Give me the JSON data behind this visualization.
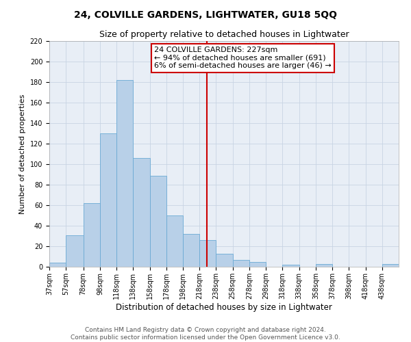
{
  "title": "24, COLVILLE GARDENS, LIGHTWATER, GU18 5QQ",
  "subtitle": "Size of property relative to detached houses in Lightwater",
  "xlabel": "Distribution of detached houses by size in Lightwater",
  "ylabel": "Number of detached properties",
  "bin_edges": [
    37,
    57,
    78,
    98,
    118,
    138,
    158,
    178,
    198,
    218,
    238,
    258,
    278,
    298,
    318,
    338,
    358,
    378,
    398,
    418,
    438,
    458
  ],
  "bar_heights": [
    4,
    31,
    62,
    130,
    182,
    106,
    89,
    50,
    32,
    26,
    13,
    7,
    5,
    0,
    2,
    0,
    3,
    0,
    0,
    0,
    3
  ],
  "bar_color": "#b8d0e8",
  "bar_edge_color": "#6aaad4",
  "grid_color": "#c8d4e4",
  "background_color": "#e8eef6",
  "vline_x": 227,
  "vline_color": "#cc0000",
  "annotation_text": "24 COLVILLE GARDENS: 227sqm\n← 94% of detached houses are smaller (691)\n6% of semi-detached houses are larger (46) →",
  "annotation_box_color": "#cc0000",
  "xlim": [
    37,
    458
  ],
  "ylim": [
    0,
    220
  ],
  "yticks": [
    0,
    20,
    40,
    60,
    80,
    100,
    120,
    140,
    160,
    180,
    200,
    220
  ],
  "xtick_labels": [
    "37sqm",
    "57sqm",
    "78sqm",
    "98sqm",
    "118sqm",
    "138sqm",
    "158sqm",
    "178sqm",
    "198sqm",
    "218sqm",
    "238sqm",
    "258sqm",
    "278sqm",
    "298sqm",
    "318sqm",
    "338sqm",
    "358sqm",
    "378sqm",
    "398sqm",
    "418sqm",
    "438sqm"
  ],
  "footer_text": "Contains HM Land Registry data © Crown copyright and database right 2024.\nContains public sector information licensed under the Open Government Licence v3.0.",
  "title_fontsize": 10,
  "subtitle_fontsize": 9,
  "xlabel_fontsize": 8.5,
  "ylabel_fontsize": 8,
  "tick_fontsize": 7,
  "annotation_fontsize": 8,
  "footer_fontsize": 6.5
}
